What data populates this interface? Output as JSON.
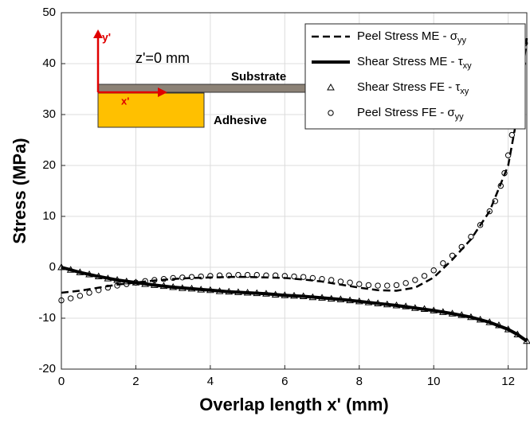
{
  "chart_data": {
    "type": "line",
    "xlabel": "Overlap length x' (mm)",
    "ylabel": "Stress (MPa)",
    "xlim": [
      0,
      12.5
    ],
    "xticks": [
      0,
      2,
      4,
      6,
      8,
      10,
      12
    ],
    "ylim": [
      -20,
      50
    ],
    "yticks": [
      -20,
      -10,
      0,
      10,
      20,
      30,
      40,
      50
    ],
    "grid": true,
    "legend": "upper right",
    "annotations": [
      "y'",
      "z'=0 mm",
      "Substrate",
      "x'",
      "Adhesive"
    ],
    "series": [
      {
        "name": "Peel Stress ME - σ",
        "subscript": "yy",
        "color": "#000000",
        "line_style": "dashed",
        "x": [
          0,
          0.5,
          1,
          1.5,
          2,
          2.5,
          3,
          3.5,
          4,
          4.5,
          5,
          5.5,
          6,
          6.5,
          7,
          7.5,
          8,
          8.5,
          9,
          9.5,
          10,
          10.5,
          11,
          11.5,
          12,
          12.25,
          12.5
        ],
        "values": [
          -5,
          -4.6,
          -4,
          -3.4,
          -3,
          -2.6,
          -2.3,
          -2.1,
          -2,
          -1.9,
          -1.9,
          -2,
          -2.1,
          -2.4,
          -2.8,
          -3.4,
          -4,
          -4.5,
          -4.6,
          -4,
          -2,
          1.5,
          5.5,
          11,
          20,
          30,
          45
        ]
      },
      {
        "name": "Shear Stress ME - τ",
        "subscript": "xy",
        "color": "#000000",
        "line_style": "solid",
        "x": [
          0,
          0.5,
          1,
          1.5,
          2,
          2.5,
          3,
          3.5,
          4,
          4.5,
          5,
          5.5,
          6,
          6.5,
          7,
          7.5,
          8,
          8.5,
          9,
          9.5,
          10,
          10.5,
          11,
          11.5,
          12,
          12.25,
          12.5
        ],
        "values": [
          0,
          -1,
          -1.8,
          -2.5,
          -3,
          -3.5,
          -3.9,
          -4.2,
          -4.5,
          -4.8,
          -5,
          -5.2,
          -5.5,
          -5.7,
          -6,
          -6.3,
          -6.7,
          -7.1,
          -7.5,
          -8,
          -8.5,
          -9.1,
          -9.8,
          -10.8,
          -12.2,
          -13.2,
          -14.5
        ]
      },
      {
        "name": "Shear Stress FE - τ",
        "subscript": "xy",
        "color": "#000000",
        "marker": "triangle",
        "x": [
          0,
          0.25,
          0.5,
          0.75,
          1,
          1.25,
          1.5,
          1.75,
          2,
          2.25,
          2.5,
          2.75,
          3,
          3.25,
          3.5,
          3.75,
          4,
          4.25,
          4.5,
          4.75,
          5,
          5.25,
          5.5,
          5.75,
          6,
          6.25,
          6.5,
          6.75,
          7,
          7.25,
          7.5,
          7.75,
          8,
          8.25,
          8.5,
          8.75,
          9,
          9.25,
          9.5,
          9.75,
          10,
          10.25,
          10.5,
          10.75,
          11,
          11.25,
          11.5,
          11.75,
          12,
          12.25,
          12.5
        ],
        "values": [
          0,
          -0.5,
          -1,
          -1.4,
          -1.8,
          -2.2,
          -2.5,
          -2.8,
          -3,
          -3.3,
          -3.5,
          -3.7,
          -3.9,
          -4.1,
          -4.2,
          -4.4,
          -4.5,
          -4.7,
          -4.8,
          -4.9,
          -5,
          -5.1,
          -5.2,
          -5.4,
          -5.5,
          -5.6,
          -5.7,
          -5.9,
          -6,
          -6.2,
          -6.3,
          -6.5,
          -6.7,
          -6.9,
          -7.1,
          -7.3,
          -7.5,
          -7.7,
          -8,
          -8.2,
          -8.5,
          -8.8,
          -9.1,
          -9.4,
          -9.8,
          -10.3,
          -10.8,
          -11.4,
          -12.2,
          -13.2,
          -14.5
        ]
      },
      {
        "name": "Peel Stress FE - σ",
        "subscript": "yy",
        "color": "#000000",
        "marker": "circle",
        "x": [
          0,
          0.25,
          0.5,
          0.75,
          1,
          1.25,
          1.5,
          1.75,
          2,
          2.25,
          2.5,
          2.75,
          3,
          3.25,
          3.5,
          3.75,
          4,
          4.25,
          4.5,
          4.75,
          5,
          5.25,
          5.5,
          5.75,
          6,
          6.25,
          6.5,
          6.75,
          7,
          7.25,
          7.5,
          7.75,
          8,
          8.25,
          8.5,
          8.75,
          9,
          9.25,
          9.5,
          9.75,
          10,
          10.25,
          10.5,
          10.75,
          11,
          11.25,
          11.5,
          11.65,
          11.8,
          11.9,
          12,
          12.1,
          12.2,
          12.3,
          12.4,
          12.45
        ],
        "values": [
          -6.5,
          -6.1,
          -5.6,
          -5,
          -4.5,
          -4,
          -3.6,
          -3.3,
          -3,
          -2.7,
          -2.5,
          -2.3,
          -2.1,
          -2,
          -1.9,
          -1.8,
          -1.7,
          -1.6,
          -1.6,
          -1.5,
          -1.5,
          -1.5,
          -1.6,
          -1.6,
          -1.7,
          -1.8,
          -1.9,
          -2.1,
          -2.3,
          -2.5,
          -2.8,
          -3,
          -3.3,
          -3.5,
          -3.6,
          -3.6,
          -3.5,
          -3.1,
          -2.5,
          -1.7,
          -0.6,
          0.8,
          2.3,
          4,
          6,
          8.3,
          11,
          13,
          16,
          18.5,
          22,
          26,
          30,
          35,
          40,
          44
        ]
      }
    ]
  }
}
